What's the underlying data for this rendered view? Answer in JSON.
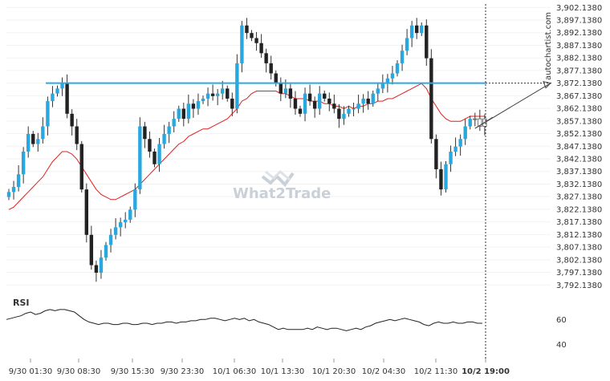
{
  "chart_data": {
    "type": "candlestick",
    "watermark": "What2Trade",
    "source_label": "autochartist.com",
    "colors": {
      "up": "#29a8e0",
      "down": "#222222",
      "ma": "#e02020",
      "level": "#2ea8df",
      "rsi": "#222222"
    },
    "y_ticks": [
      "3,902.1380",
      "3,897.1380",
      "3,892.1380",
      "3,887.1380",
      "3,882.1380",
      "3,877.1380",
      "3,872.1380",
      "3,867.1380",
      "3,862.1380",
      "3,857.1380",
      "3,852.1380",
      "3,847.1380",
      "3,842.1380",
      "3,837.1380",
      "3,832.1380",
      "3,827.1380",
      "3,822.1380",
      "3,817.1380",
      "3,812.1380",
      "3,807.1380",
      "3,802.1380",
      "3,797.1380",
      "3,792.1380"
    ],
    "ylim": [
      3790.0,
      3903.5
    ],
    "x_ticks": [
      "9/30 01:30",
      "9/30 08:30",
      "9/30 15:30",
      "9/30 23:30",
      "10/1 06:30",
      "10/1 13:30",
      "10/1 20:30",
      "10/2 04:30",
      "10/2 11:30",
      "10/2 19:00"
    ],
    "highlight_tick": "10/2 19:00",
    "level": 3872.138,
    "projection": {
      "target": 3872.138,
      "bars_ahead": 10
    },
    "rsi": {
      "label": "RSI",
      "ticks": [
        "60",
        "40"
      ],
      "ylim": [
        30,
        75
      ]
    },
    "closes": [
      3829,
      3831,
      3836,
      3845,
      3852,
      3848,
      3850,
      3855,
      3865,
      3868,
      3870,
      3872,
      3860,
      3855,
      3848,
      3830,
      3812,
      3800,
      3797,
      3803,
      3808,
      3812,
      3815,
      3817,
      3818,
      3822,
      3830,
      3855,
      3850,
      3845,
      3840,
      3848,
      3852,
      3855,
      3858,
      3862,
      3858,
      3864,
      3862,
      3865,
      3866,
      3868,
      3867,
      3868,
      3870,
      3866,
      3862,
      3880,
      3895,
      3892,
      3890,
      3888,
      3884,
      3880,
      3876,
      3872,
      3868,
      3870,
      3866,
      3862,
      3860,
      3868,
      3865,
      3862,
      3868,
      3866,
      3864,
      3862,
      3858,
      3860,
      3862,
      3862,
      3864,
      3866,
      3864,
      3868,
      3870,
      3872,
      3874,
      3876,
      3880,
      3885,
      3890,
      3895,
      3892,
      3895,
      3882,
      3850,
      3838,
      3830,
      3840,
      3845,
      3847,
      3850,
      3855,
      3858,
      3858,
      3855,
      3858
    ],
    "ma": [
      3822,
      3823,
      3825,
      3827,
      3829,
      3831,
      3833,
      3835,
      3838,
      3841,
      3843,
      3845,
      3845,
      3844,
      3842,
      3839,
      3836,
      3833,
      3830,
      3828,
      3827,
      3826,
      3826,
      3827,
      3828,
      3829,
      3830,
      3832,
      3834,
      3836,
      3838,
      3840,
      3842,
      3844,
      3846,
      3848,
      3849,
      3851,
      3852,
      3853,
      3854,
      3854,
      3855,
      3856,
      3857,
      3858,
      3860,
      3862,
      3865,
      3866,
      3868,
      3869,
      3869,
      3869,
      3869,
      3869,
      3868,
      3868,
      3867,
      3866,
      3866,
      3866,
      3865,
      3865,
      3865,
      3864,
      3864,
      3863,
      3863,
      3862,
      3863,
      3862,
      3863,
      3863,
      3864,
      3864,
      3865,
      3865,
      3866,
      3866,
      3867,
      3868,
      3869,
      3870,
      3871,
      3872,
      3870,
      3866,
      3863,
      3860,
      3858,
      3857,
      3857,
      3857,
      3858,
      3859,
      3859,
      3859,
      3859
    ],
    "rsi_values": [
      60,
      61,
      62,
      63,
      65,
      66,
      64,
      65,
      67,
      68,
      67,
      68,
      68,
      67,
      66,
      63,
      60,
      58,
      57,
      56,
      57,
      57,
      56,
      56,
      57,
      57,
      56,
      56,
      57,
      57,
      56,
      57,
      57,
      58,
      58,
      57,
      58,
      58,
      59,
      59,
      60,
      60,
      61,
      61,
      60,
      59,
      60,
      61,
      60,
      61,
      59,
      60,
      58,
      57,
      56,
      54,
      52,
      53,
      52,
      52,
      52,
      52,
      53,
      52,
      54,
      53,
      52,
      53,
      53,
      52,
      51,
      52,
      53,
      52,
      54,
      55,
      57,
      58,
      59,
      60,
      59,
      60,
      61,
      60,
      59,
      58,
      56,
      55,
      57,
      58,
      57,
      57,
      58,
      57,
      57,
      58,
      58,
      57,
      57
    ]
  }
}
